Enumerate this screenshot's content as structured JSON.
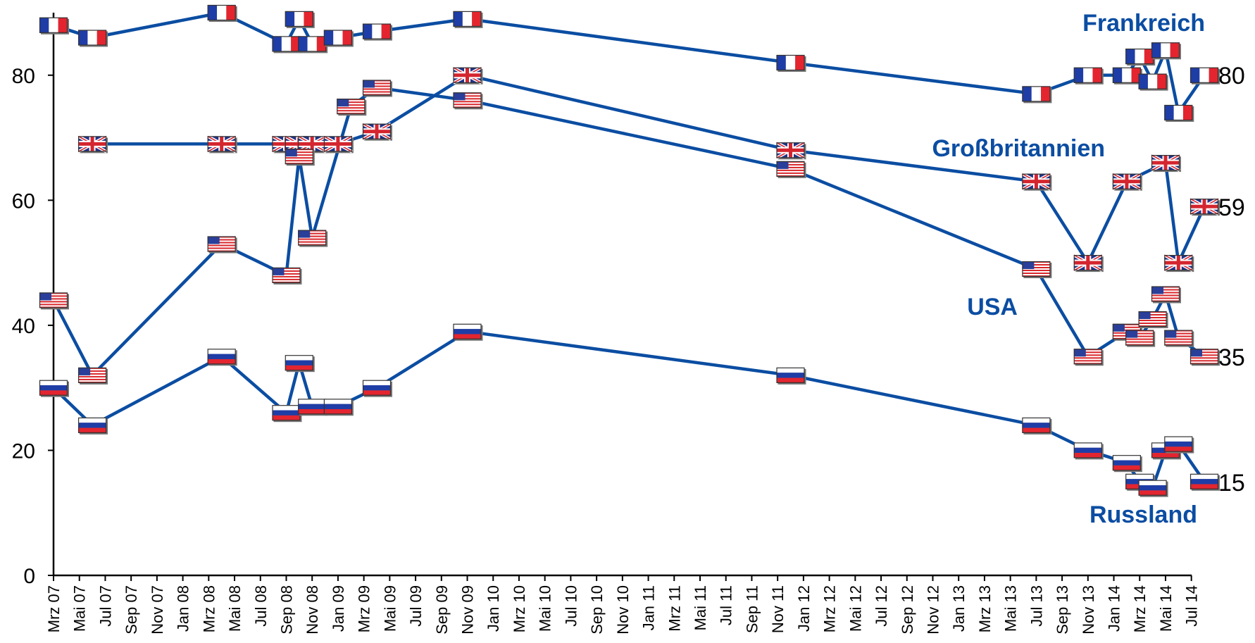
{
  "chart_data": {
    "type": "line",
    "ylim": [
      0,
      90
    ],
    "yticks": [
      0,
      20,
      40,
      60,
      80
    ],
    "grid": false,
    "xticks": [
      "Mrz 07",
      "Mai 07",
      "Jul 07",
      "Sep 07",
      "Nov 07",
      "Jan 08",
      "Mrz 08",
      "Mai 08",
      "Jul 08",
      "Sep 08",
      "Nov 08",
      "Jan 09",
      "Mrz 09",
      "Mai 09",
      "Jul 09",
      "Sep 09",
      "Nov 09",
      "Jan 10",
      "Mrz 10",
      "Mai 10",
      "Jul 10",
      "Sep 10",
      "Nov 10",
      "Jan 11",
      "Mrz 11",
      "Mai 11",
      "Jul 11",
      "Sep 11",
      "Nov 11",
      "Jan 12",
      "Mrz 12",
      "Mai 12",
      "Jul 12",
      "Sep 12",
      "Nov 12",
      "Jan 13",
      "Mrz 13",
      "Mai 13",
      "Jul 13",
      "Sep 13",
      "Nov 13",
      "Jan 14",
      "Mrz 14",
      "Mai 14",
      "Jul 14"
    ],
    "line_color": "#0b4da2",
    "series": [
      {
        "name": "Frankreich",
        "flag": "france-flag",
        "end_label": "80",
        "points": [
          {
            "x": "2007-03",
            "y": 88
          },
          {
            "x": "2007-06",
            "y": 86
          },
          {
            "x": "2008-04",
            "y": 90
          },
          {
            "x": "2008-09",
            "y": 85
          },
          {
            "x": "2008-10",
            "y": 89
          },
          {
            "x": "2008-11",
            "y": 85
          },
          {
            "x": "2009-01",
            "y": 86
          },
          {
            "x": "2009-04",
            "y": 87
          },
          {
            "x": "2009-11",
            "y": 89
          },
          {
            "x": "2011-12",
            "y": 82
          },
          {
            "x": "2013-07",
            "y": 77
          },
          {
            "x": "2013-11",
            "y": 80
          },
          {
            "x": "2014-02",
            "y": 80
          },
          {
            "x": "2014-03",
            "y": 83
          },
          {
            "x": "2014-04",
            "y": 79
          },
          {
            "x": "2014-05",
            "y": 84
          },
          {
            "x": "2014-06",
            "y": 74
          },
          {
            "x": "2014-08",
            "y": 80
          }
        ]
      },
      {
        "name": "Großbritannien",
        "flag": "uk-flag",
        "end_label": "59",
        "points": [
          {
            "x": "2007-06",
            "y": 69
          },
          {
            "x": "2008-04",
            "y": 69
          },
          {
            "x": "2008-09",
            "y": 69
          },
          {
            "x": "2008-10",
            "y": 69
          },
          {
            "x": "2008-11",
            "y": 69
          },
          {
            "x": "2009-01",
            "y": 69
          },
          {
            "x": "2009-04",
            "y": 71
          },
          {
            "x": "2009-11",
            "y": 80
          },
          {
            "x": "2011-12",
            "y": 68
          },
          {
            "x": "2013-07",
            "y": 63
          },
          {
            "x": "2013-11",
            "y": 50
          },
          {
            "x": "2014-02",
            "y": 63
          },
          {
            "x": "2014-05",
            "y": 66
          },
          {
            "x": "2014-06",
            "y": 50
          },
          {
            "x": "2014-08",
            "y": 59
          }
        ]
      },
      {
        "name": "USA",
        "flag": "usa-flag",
        "end_label": "35",
        "points": [
          {
            "x": "2007-03",
            "y": 44
          },
          {
            "x": "2007-06",
            "y": 32
          },
          {
            "x": "2008-04",
            "y": 53
          },
          {
            "x": "2008-09",
            "y": 48
          },
          {
            "x": "2008-10",
            "y": 67
          },
          {
            "x": "2008-11",
            "y": 54
          },
          {
            "x": "2009-02",
            "y": 75
          },
          {
            "x": "2009-04",
            "y": 78
          },
          {
            "x": "2009-11",
            "y": 76
          },
          {
            "x": "2011-12",
            "y": 65
          },
          {
            "x": "2013-07",
            "y": 49
          },
          {
            "x": "2013-11",
            "y": 35
          },
          {
            "x": "2014-02",
            "y": 39
          },
          {
            "x": "2014-03",
            "y": 38
          },
          {
            "x": "2014-04",
            "y": 41
          },
          {
            "x": "2014-05",
            "y": 45
          },
          {
            "x": "2014-06",
            "y": 38
          },
          {
            "x": "2014-08",
            "y": 35
          }
        ]
      },
      {
        "name": "Russland",
        "flag": "russia-flag",
        "end_label": "15",
        "points": [
          {
            "x": "2007-03",
            "y": 30
          },
          {
            "x": "2007-06",
            "y": 24
          },
          {
            "x": "2008-04",
            "y": 35
          },
          {
            "x": "2008-09",
            "y": 26
          },
          {
            "x": "2008-10",
            "y": 34
          },
          {
            "x": "2008-11",
            "y": 27
          },
          {
            "x": "2009-01",
            "y": 27
          },
          {
            "x": "2009-04",
            "y": 30
          },
          {
            "x": "2009-11",
            "y": 39
          },
          {
            "x": "2011-12",
            "y": 32
          },
          {
            "x": "2013-07",
            "y": 24
          },
          {
            "x": "2013-11",
            "y": 20
          },
          {
            "x": "2014-02",
            "y": 18
          },
          {
            "x": "2014-03",
            "y": 15
          },
          {
            "x": "2014-04",
            "y": 14
          },
          {
            "x": "2014-05",
            "y": 20
          },
          {
            "x": "2014-06",
            "y": 21
          },
          {
            "x": "2014-08",
            "y": 15
          }
        ]
      }
    ]
  }
}
